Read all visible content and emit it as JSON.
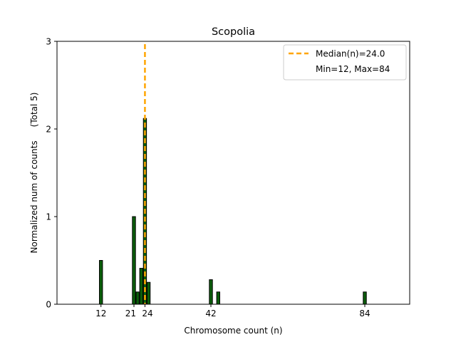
{
  "chart_data": {
    "type": "bar",
    "title": "Scopolia",
    "xlabel": "Chromosome count (n)",
    "ylabel": "Normalized num of counts     (Total 5)",
    "xlim": [
      0,
      96.25
    ],
    "ylim": [
      0,
      3
    ],
    "xticks": [
      12,
      21,
      24,
      42,
      84
    ],
    "yticks": [
      0,
      1,
      2,
      3
    ],
    "bar_width": 0.85,
    "bars": [
      {
        "x": 12,
        "value": 0.5
      },
      {
        "x": 21,
        "value": 1.0
      },
      {
        "x": 22,
        "value": 0.14
      },
      {
        "x": 23,
        "value": 0.41
      },
      {
        "x": 24,
        "value": 2.12
      },
      {
        "x": 25,
        "value": 0.25
      },
      {
        "x": 42,
        "value": 0.28
      },
      {
        "x": 44,
        "value": 0.14
      },
      {
        "x": 84,
        "value": 0.14
      }
    ],
    "median_line": {
      "x": 24,
      "label": "Median(n)=24.0",
      "color": "#ffa500"
    },
    "legend_entries": [
      "Median(n)=24.0",
      "Min=12, Max=84"
    ],
    "legend_position": "upper right",
    "bar_color": "#0b5e0b",
    "bar_edge_color": "#000000"
  }
}
